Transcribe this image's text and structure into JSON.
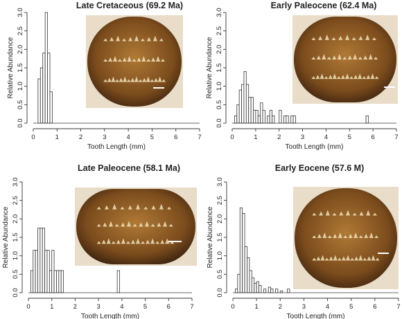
{
  "chart_data": [
    {
      "type": "bar",
      "title": "Late Cretaceous (69.2 Ma)",
      "xlabel": "Tooth Length (mm)",
      "ylabel": "Relative Abundance",
      "xlim": [
        0,
        7
      ],
      "ylim": [
        0,
        3.0
      ],
      "xticks": [
        0,
        1,
        2,
        3,
        4,
        5,
        6,
        7
      ],
      "yticks": [
        0.0,
        0.5,
        1.0,
        1.5,
        2.0,
        2.5,
        3.0
      ],
      "bin_width": 0.1,
      "bins": [
        [
          0.2,
          1.2
        ],
        [
          0.3,
          1.5
        ],
        [
          0.4,
          1.9
        ],
        [
          0.5,
          3.0
        ],
        [
          0.6,
          1.9
        ],
        [
          0.7,
          0.85
        ]
      ],
      "inset_photo": "fossil teeth specimen photograph with scale bar"
    },
    {
      "type": "bar",
      "title": "Early Paleocene (62.4 Ma)",
      "xlabel": "Tooth Length (mm)",
      "ylabel": "Relative Abundance",
      "xlim": [
        0,
        7
      ],
      "ylim": [
        0,
        3.0
      ],
      "xticks": [
        0,
        1,
        2,
        3,
        4,
        5,
        6,
        7
      ],
      "yticks": [
        0.0,
        0.5,
        1.0,
        1.5,
        2.0,
        2.5,
        3.0
      ],
      "bin_width": 0.1,
      "bins": [
        [
          0.1,
          0.2
        ],
        [
          0.2,
          0.5
        ],
        [
          0.3,
          0.9
        ],
        [
          0.4,
          1.05
        ],
        [
          0.5,
          1.4
        ],
        [
          0.6,
          1.05
        ],
        [
          0.7,
          0.7
        ],
        [
          0.8,
          0.7
        ],
        [
          0.9,
          0.35
        ],
        [
          1.0,
          0.35
        ],
        [
          1.1,
          0.2
        ],
        [
          1.2,
          0.55
        ],
        [
          1.3,
          0.35
        ],
        [
          1.5,
          0.2
        ],
        [
          1.6,
          0.35
        ],
        [
          1.7,
          0.2
        ],
        [
          2.0,
          0.35
        ],
        [
          2.2,
          0.2
        ],
        [
          2.3,
          0.2
        ],
        [
          2.5,
          0.2
        ],
        [
          2.6,
          0.2
        ],
        [
          5.7,
          0.2
        ]
      ],
      "inset_photo": "fossil teeth specimen photograph with scale bar"
    },
    {
      "type": "bar",
      "title": "Late Paleocene (58.1 Ma)",
      "xlabel": "Tooth Length (mm)",
      "ylabel": "Relative Abundance",
      "xlim": [
        0,
        7
      ],
      "ylim": [
        0,
        3.0
      ],
      "xticks": [
        0,
        1,
        2,
        3,
        4,
        5,
        6,
        7
      ],
      "yticks": [
        0.0,
        0.5,
        1.0,
        1.5,
        2.0,
        2.5,
        3.0
      ],
      "bin_width": 0.1,
      "bins": [
        [
          0.1,
          0.6
        ],
        [
          0.2,
          1.15
        ],
        [
          0.3,
          1.15
        ],
        [
          0.4,
          1.75
        ],
        [
          0.5,
          1.75
        ],
        [
          0.6,
          1.75
        ],
        [
          0.7,
          1.15
        ],
        [
          0.8,
          1.15
        ],
        [
          0.9,
          0.6
        ],
        [
          1.0,
          1.15
        ],
        [
          1.1,
          0.6
        ],
        [
          1.2,
          0.6
        ],
        [
          1.3,
          0.6
        ],
        [
          1.4,
          0.6
        ],
        [
          3.8,
          0.6
        ]
      ],
      "inset_photo": "fossil teeth specimen photograph with scale bar"
    },
    {
      "type": "bar",
      "title": "Early Eocene (57.6 M)",
      "xlabel": "Tooth Length (mm)",
      "ylabel": "Relative Abundance",
      "xlim": [
        0,
        7
      ],
      "ylim": [
        0,
        3.0
      ],
      "xticks": [
        0,
        1,
        2,
        3,
        4,
        5,
        6,
        7
      ],
      "yticks": [
        0.0,
        0.5,
        1.0,
        1.5,
        2.0,
        2.5,
        3.0
      ],
      "bin_width": 0.1,
      "bins": [
        [
          0.1,
          0.1
        ],
        [
          0.2,
          0.5
        ],
        [
          0.3,
          2.3
        ],
        [
          0.4,
          2.15
        ],
        [
          0.5,
          1.25
        ],
        [
          0.6,
          0.95
        ],
        [
          0.7,
          0.6
        ],
        [
          0.8,
          0.4
        ],
        [
          0.9,
          0.25
        ],
        [
          1.0,
          0.3
        ],
        [
          1.1,
          0.2
        ],
        [
          1.3,
          0.1
        ],
        [
          1.5,
          0.15
        ],
        [
          1.6,
          0.1
        ],
        [
          1.8,
          0.1
        ],
        [
          2.0,
          0.05
        ],
        [
          2.3,
          0.1
        ]
      ],
      "inset_photo": "fossil teeth specimen photograph with scale bar"
    }
  ]
}
